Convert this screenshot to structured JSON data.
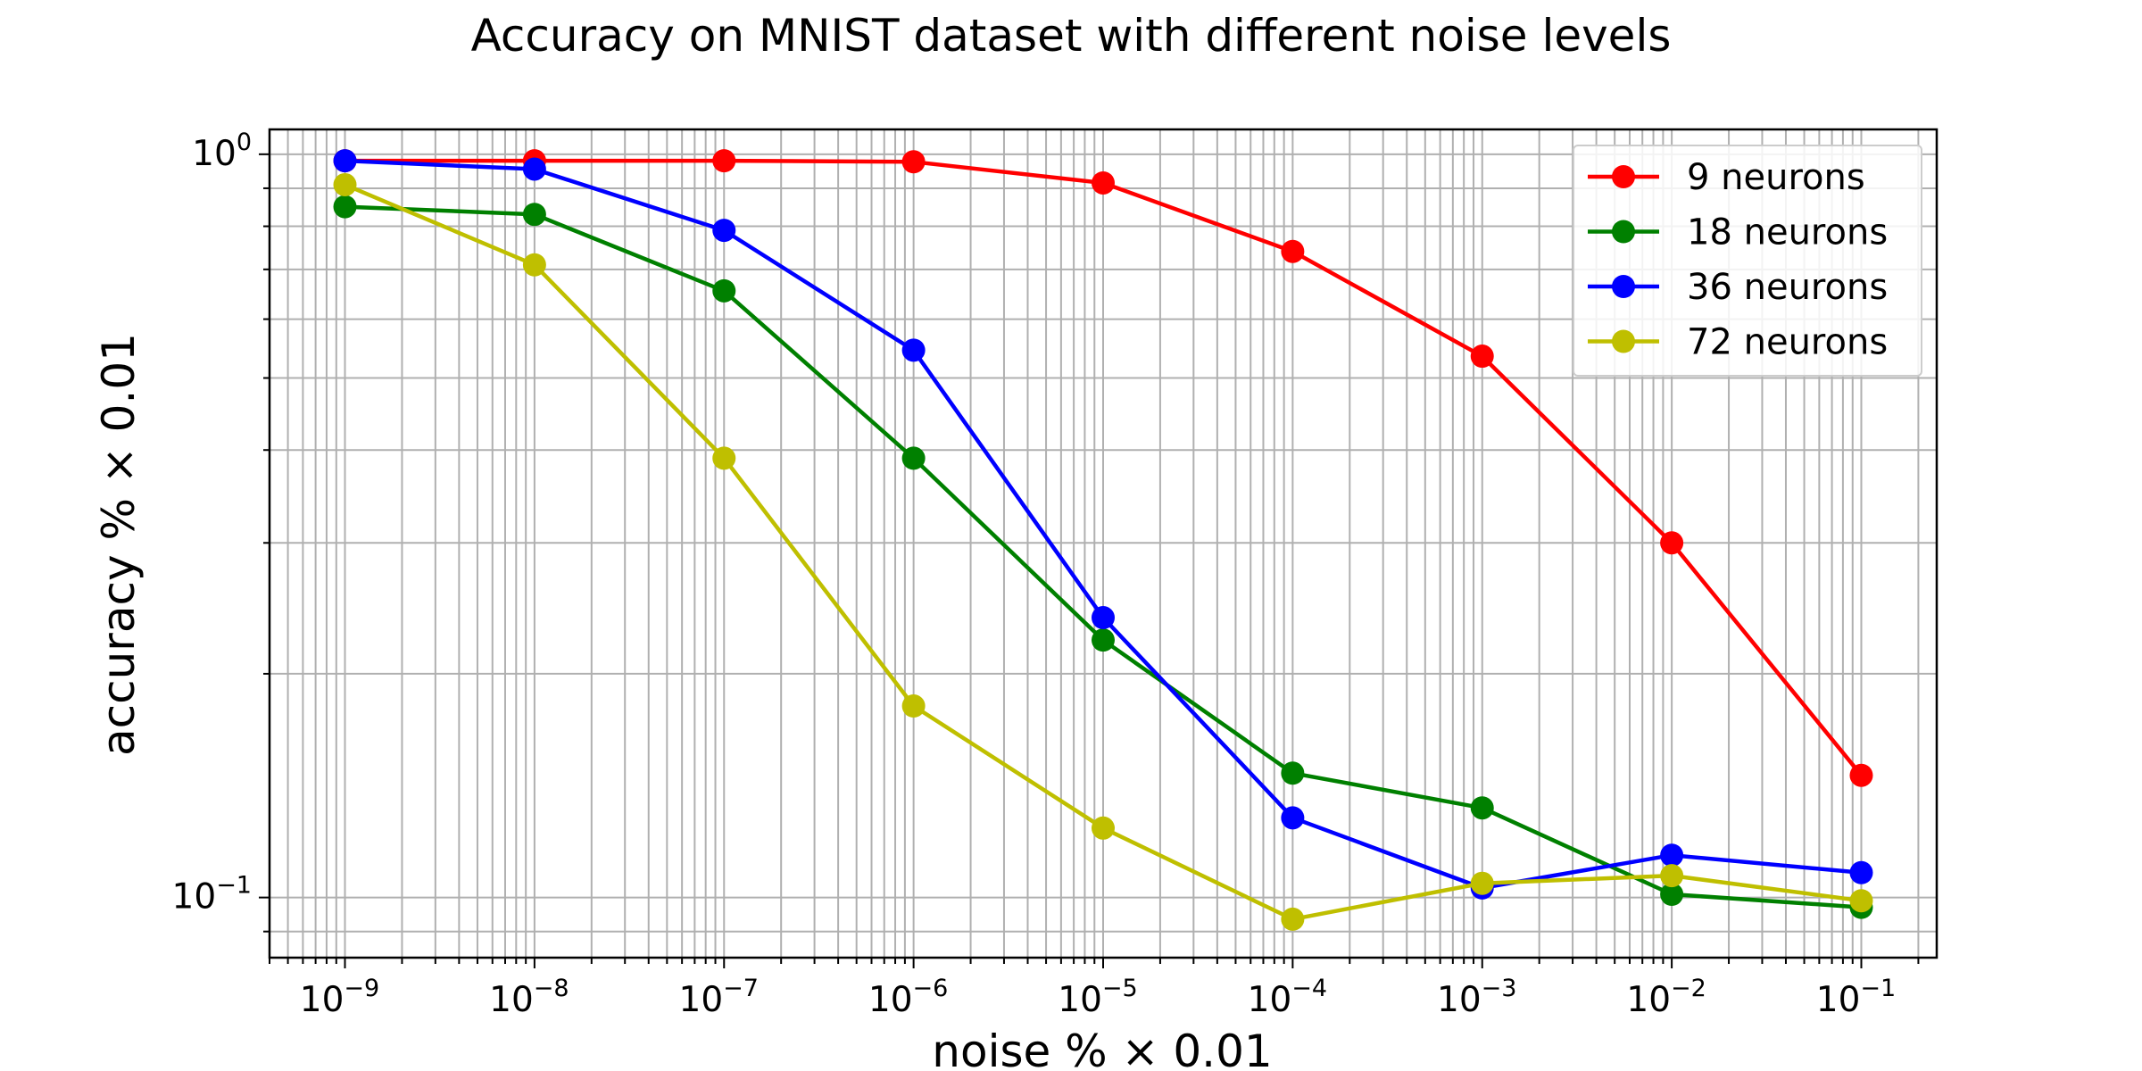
{
  "chart_data": {
    "type": "line",
    "title": "Accuracy on MNIST dataset with different noise levels",
    "xlabel": "noise % × 0.01",
    "ylabel": "accuracy % × 0.01",
    "xscale": "log",
    "yscale": "log",
    "xlim": [
      4e-10,
      0.25
    ],
    "ylim": [
      0.083,
      1.08
    ],
    "grid": true,
    "legend_position": "top-right",
    "x": [
      1e-09,
      1e-08,
      1e-07,
      1e-06,
      1e-05,
      0.0001,
      0.001,
      0.01,
      0.1
    ],
    "x_tick_labels": [
      {
        "base": "10",
        "exp": "−9"
      },
      {
        "base": "10",
        "exp": "−8"
      },
      {
        "base": "10",
        "exp": "−7"
      },
      {
        "base": "10",
        "exp": "−6"
      },
      {
        "base": "10",
        "exp": "−5"
      },
      {
        "base": "10",
        "exp": "−4"
      },
      {
        "base": "10",
        "exp": "−3"
      },
      {
        "base": "10",
        "exp": "−2"
      },
      {
        "base": "10",
        "exp": "−1"
      }
    ],
    "y_tick_values": [
      1,
      0.1
    ],
    "y_tick_labels": [
      {
        "base": "10",
        "exp": "0"
      },
      {
        "base": "10",
        "exp": "−1"
      }
    ],
    "series": [
      {
        "name": "9 neurons",
        "color": "#ff0000",
        "values": [
          0.98,
          0.98,
          0.98,
          0.977,
          0.915,
          0.74,
          0.535,
          0.3,
          0.146
        ]
      },
      {
        "name": "18 neurons",
        "color": "#008000",
        "values": [
          0.85,
          0.83,
          0.655,
          0.39,
          0.222,
          0.147,
          0.132,
          0.101,
          0.097
        ]
      },
      {
        "name": "36 neurons",
        "color": "#0000ff",
        "values": [
          0.98,
          0.955,
          0.79,
          0.545,
          0.238,
          0.128,
          0.103,
          0.114,
          0.108
        ]
      },
      {
        "name": "72 neurons",
        "color": "#bfbf00",
        "values": [
          0.91,
          0.71,
          0.39,
          0.181,
          0.124,
          0.0935,
          0.1045,
          0.107,
          0.099
        ]
      }
    ]
  }
}
